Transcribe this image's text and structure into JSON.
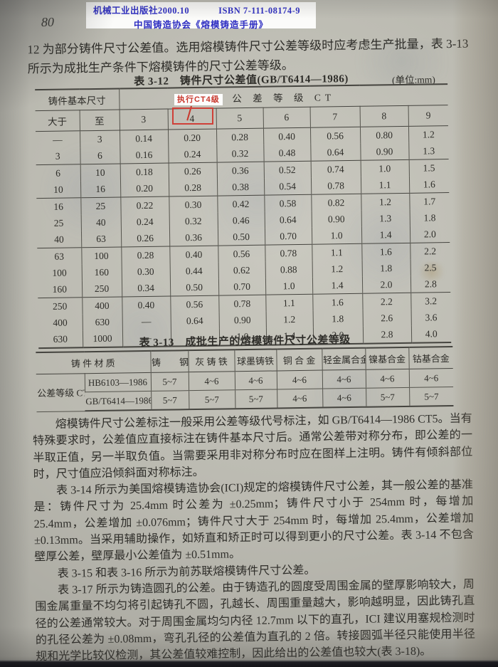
{
  "colors": {
    "paper": "#b7b6ae",
    "ink": "#2e2d29",
    "table_line": "#45443f",
    "stamp_text": "#2e2ec2",
    "stamp_bg": "#fbfbf9",
    "annotation_red": "#c8372c"
  },
  "stamp": {
    "publisher": "机械工业出版社2000.10",
    "isbn": "ISBN 7-111-08174-9",
    "series": "中国铸造协会《熔模铸造手册》"
  },
  "page_number": "80",
  "intro_text": "12 为部分铸件尺寸公差值。选用熔模铸件尺寸公差等级时应考虑生产批量，表 3-13 所示为成批生产条件下熔模铸件的尺寸公差等级。",
  "table_3_12": {
    "title": "表 3-12　铸件尺寸公差值(GB/T6414—1986)",
    "unit_label": "(单位:mm)",
    "annotation_label": "执行CT4级",
    "col_headers": {
      "basic_size": "铸件基本尺寸",
      "over": "大于",
      "to": "至",
      "ct_label": "公 差 等 级 CT",
      "grades": [
        "3",
        "4",
        "5",
        "6",
        "7",
        "8",
        "9"
      ]
    },
    "rows": [
      {
        "over": "—",
        "to": "3",
        "values": [
          "0.14",
          "0.20",
          "0.28",
          "0.40",
          "0.56",
          "0.80",
          "1.2"
        ],
        "groupEnd": false
      },
      {
        "over": "3",
        "to": "6",
        "values": [
          "0.16",
          "0.24",
          "0.32",
          "0.48",
          "0.64",
          "0.90",
          "1.3"
        ],
        "groupEnd": true
      },
      {
        "over": "6",
        "to": "10",
        "values": [
          "0.18",
          "0.26",
          "0.36",
          "0.52",
          "0.74",
          "1.0",
          "1.5"
        ],
        "groupEnd": false
      },
      {
        "over": "10",
        "to": "16",
        "values": [
          "0.20",
          "0.28",
          "0.38",
          "0.54",
          "0.78",
          "1.1",
          "1.6"
        ],
        "groupEnd": true
      },
      {
        "over": "16",
        "to": "25",
        "values": [
          "0.22",
          "0.30",
          "0.42",
          "0.58",
          "0.82",
          "1.2",
          "1.7"
        ],
        "groupEnd": false
      },
      {
        "over": "25",
        "to": "40",
        "values": [
          "0.24",
          "0.32",
          "0.46",
          "0.64",
          "0.90",
          "1.3",
          "1.8"
        ],
        "groupEnd": false
      },
      {
        "over": "40",
        "to": "63",
        "values": [
          "0.26",
          "0.36",
          "0.50",
          "0.70",
          "1.0",
          "1.4",
          "2.0"
        ],
        "groupEnd": true
      },
      {
        "over": "63",
        "to": "100",
        "values": [
          "0.28",
          "0.40",
          "0.56",
          "0.78",
          "1.1",
          "1.6",
          "2.2"
        ],
        "groupEnd": false
      },
      {
        "over": "100",
        "to": "160",
        "values": [
          "0.30",
          "0.44",
          "0.62",
          "0.88",
          "1.2",
          "1.8",
          "2.5"
        ],
        "groupEnd": false
      },
      {
        "over": "160",
        "to": "250",
        "values": [
          "0.34",
          "0.50",
          "0.70",
          "1.0",
          "1.4",
          "2.0",
          "2.8"
        ],
        "groupEnd": true
      },
      {
        "over": "250",
        "to": "400",
        "values": [
          "0.40",
          "0.56",
          "0.78",
          "1.1",
          "1.6",
          "2.2",
          "3.2"
        ],
        "groupEnd": false
      },
      {
        "over": "400",
        "to": "630",
        "values": [
          "—",
          "0.64",
          "0.90",
          "1.2",
          "1.8",
          "2.6",
          "3.6"
        ],
        "groupEnd": false
      },
      {
        "over": "630",
        "to": "1000",
        "values": [
          "—",
          "—",
          "1.0",
          "1.4",
          "2.0",
          "2.8",
          "4.0"
        ],
        "groupEnd": false
      }
    ]
  },
  "table_3_13": {
    "title": "表 3-13　成批生产的熔模铸件尺寸公差等级",
    "material_header": "铸 件 材 质",
    "materials": [
      "铸　　钢",
      "灰 铸 铁",
      "球墨铸铁",
      "铜 合 金",
      "轻金属合金",
      "镍基合金",
      "钴基合金"
    ],
    "row_label": "公差等级 CT",
    "rows": [
      {
        "standard": "HB6103—1986",
        "values": [
          "5~7",
          "4~6",
          "4~6",
          "4~6",
          "4~6",
          "4~6",
          "4~6"
        ]
      },
      {
        "standard": "GB/T6414—1986",
        "values": [
          "5~7",
          "5~7",
          "5~7",
          "4~6",
          "4~6",
          "5~7",
          "5~7"
        ]
      }
    ]
  },
  "paragraphs": [
    "熔模铸件尺寸公差标注一般采用公差等级代号标注，如 GB/T6414—1986 CT5。当有特殊要求时，公差值应直接标注在铸件基本尺寸后。通常公差带对称分布，即公差的一半取正值，另一半取负值。当需要采用非对称分布时应在图样上注明。铸件有倾斜部位时，尺寸值应沿倾斜面对称标注。",
    "表 3-14 所示为美国熔模铸造协会(ICI)规定的熔模铸件尺寸公差，其一般公差的基准是：铸件尺寸为 25.4mm 时公差为 ±0.25mm；铸件尺寸小于 254mm 时，每增加 25.4mm，公差增加 ±0.076mm；铸件尺寸大于 254mm 时，每增加 25.4mm，公差增加 ±0.13mm。当采用辅助操作，如矫直和矫正时可以得到更小的尺寸公差。表 3-14 不包含壁厚公差，壁厚最小公差值为 ±0.51mm。",
    "表 3-15 和表 3-16 所示为前苏联熔模铸件尺寸公差。",
    "表 3-17 所示为铸造圆孔的公差。由于铸造孔的圆度受周围金属的壁厚影响较大，周围金属重量不均匀将引起铸孔不圆，孔越长、周围重量越大，影响越明显，因此铸孔直径的公差通常较大。对于周围金属均匀内径 12.7mm 以下的直孔，ICI 建议用塞规检测时的孔径公差为 ±0.08mm，弯孔孔径的公差值为直孔的 2 倍。转接圆弧半径只能使用半径规和光学比较仪检测，其公差值较难控制，因此给出的公差值也较大(表 3-18)。"
  ]
}
